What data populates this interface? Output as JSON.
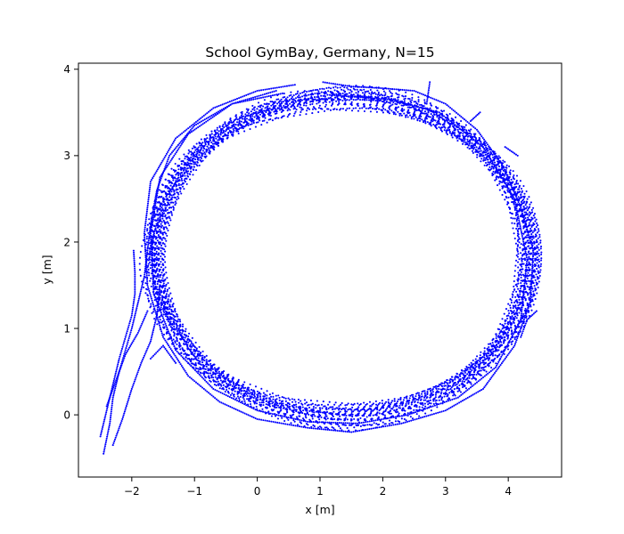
{
  "chart_data": {
    "type": "scatter",
    "title": "School GymBay, Germany, N=15",
    "xlabel": "x [m]",
    "ylabel": "y [m]",
    "xlim": [
      -2.85,
      4.85
    ],
    "ylim": [
      -0.72,
      4.07
    ],
    "xticks": [
      -2,
      -1,
      0,
      1,
      2,
      3,
      4
    ],
    "yticks": [
      0,
      1,
      2,
      3,
      4
    ],
    "grid": false,
    "legend": "none",
    "point_color": "#0000ff",
    "trajectory_count": 15,
    "loop": {
      "center_x": 1.35,
      "center_y": 1.83,
      "radius_x": 3.0,
      "radius_y": 1.85,
      "band_width": 0.22
    },
    "series": [
      {
        "points": [
          [
            1.05,
            3.85
          ],
          [
            1.5,
            3.8
          ],
          [
            2.0,
            3.78
          ],
          [
            2.5,
            3.75
          ],
          [
            3.0,
            3.6
          ],
          [
            3.5,
            3.3
          ],
          [
            3.9,
            2.9
          ],
          [
            4.2,
            2.4
          ],
          [
            4.4,
            1.9
          ],
          [
            4.35,
            1.3
          ],
          [
            4.1,
            0.8
          ],
          [
            3.6,
            0.3
          ],
          [
            3.0,
            0.05
          ],
          [
            2.3,
            -0.1
          ],
          [
            1.5,
            -0.2
          ],
          [
            0.8,
            -0.15
          ],
          [
            0.0,
            -0.05
          ],
          [
            -0.6,
            0.15
          ],
          [
            -1.1,
            0.45
          ],
          [
            -1.5,
            0.9
          ],
          [
            -1.75,
            1.5
          ],
          [
            -1.8,
            2.1
          ],
          [
            -1.7,
            2.7
          ],
          [
            -1.3,
            3.2
          ],
          [
            -0.7,
            3.55
          ],
          [
            0.0,
            3.75
          ],
          [
            0.6,
            3.82
          ]
        ]
      },
      {
        "points": [
          [
            1.2,
            3.7
          ],
          [
            2.1,
            3.65
          ],
          [
            2.9,
            3.5
          ],
          [
            3.6,
            3.1
          ],
          [
            4.1,
            2.5
          ],
          [
            4.3,
            1.8
          ],
          [
            4.2,
            1.1
          ],
          [
            3.8,
            0.55
          ],
          [
            3.2,
            0.2
          ],
          [
            2.4,
            0.0
          ],
          [
            1.6,
            -0.1
          ],
          [
            0.8,
            -0.08
          ],
          [
            0.0,
            0.05
          ],
          [
            -0.7,
            0.3
          ],
          [
            -1.3,
            0.75
          ],
          [
            -1.65,
            1.4
          ],
          [
            -1.7,
            2.1
          ],
          [
            -1.55,
            2.75
          ],
          [
            -1.1,
            3.25
          ],
          [
            -0.4,
            3.6
          ],
          [
            0.4,
            3.72
          ]
        ]
      },
      {
        "points": [
          [
            -2.45,
            -0.45
          ],
          [
            -2.35,
            -0.1
          ],
          [
            -2.3,
            0.2
          ],
          [
            -2.2,
            0.5
          ],
          [
            -2.1,
            0.75
          ],
          [
            -2.0,
            1.0
          ],
          [
            -1.9,
            1.3
          ],
          [
            -1.8,
            1.6
          ],
          [
            -1.75,
            1.9
          ],
          [
            -1.7,
            2.2
          ],
          [
            -1.6,
            2.6
          ],
          [
            -1.4,
            3.0
          ],
          [
            -1.0,
            3.35
          ],
          [
            -0.4,
            3.6
          ],
          [
            0.3,
            3.75
          ]
        ]
      },
      {
        "points": [
          [
            -2.5,
            -0.25
          ],
          [
            -2.4,
            0.05
          ],
          [
            -2.3,
            0.35
          ],
          [
            -2.2,
            0.65
          ],
          [
            -2.1,
            0.9
          ],
          [
            -2.0,
            1.15
          ],
          [
            -1.95,
            1.4
          ],
          [
            -1.95,
            1.65
          ],
          [
            -1.97,
            1.9
          ]
        ]
      },
      {
        "points": [
          [
            -2.3,
            -0.35
          ],
          [
            -2.15,
            -0.05
          ],
          [
            -2.0,
            0.3
          ],
          [
            -1.85,
            0.6
          ],
          [
            -1.7,
            0.85
          ],
          [
            -1.6,
            1.15
          ],
          [
            -1.55,
            1.5
          ]
        ]
      },
      {
        "points": [
          [
            -2.4,
            0.1
          ],
          [
            -2.25,
            0.4
          ],
          [
            -2.1,
            0.7
          ],
          [
            -1.9,
            0.95
          ],
          [
            -1.75,
            1.2
          ]
        ]
      },
      {
        "points": [
          [
            -1.7,
            0.65
          ],
          [
            -1.5,
            0.8
          ],
          [
            -1.3,
            0.6
          ]
        ]
      },
      {
        "points": [
          [
            2.75,
            3.85
          ],
          [
            2.7,
            3.6
          ]
        ]
      },
      {
        "points": [
          [
            3.55,
            3.5
          ],
          [
            3.4,
            3.4
          ]
        ]
      },
      {
        "points": [
          [
            4.15,
            3.0
          ],
          [
            3.95,
            3.1
          ]
        ]
      },
      {
        "points": [
          [
            4.45,
            1.2
          ],
          [
            4.3,
            1.1
          ],
          [
            4.2,
            0.9
          ]
        ]
      }
    ]
  }
}
